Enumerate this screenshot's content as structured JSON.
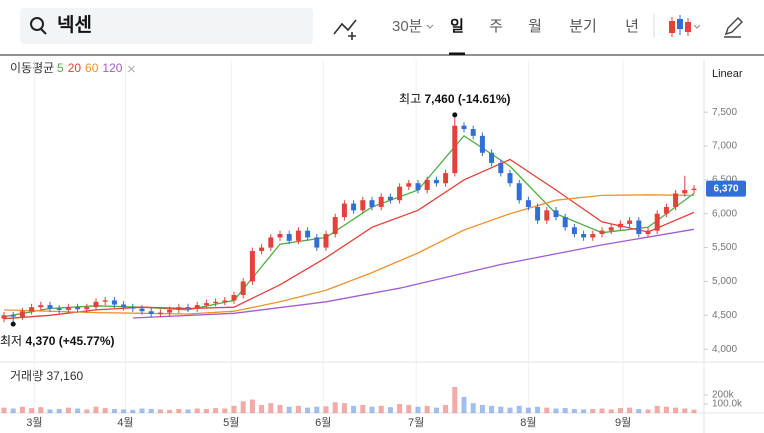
{
  "search": {
    "query": "넥센"
  },
  "toolbar": {
    "interval": "30분",
    "periods": [
      "일",
      "주",
      "월",
      "분기",
      "년"
    ],
    "selected": "일"
  },
  "chart_data": {
    "type": "candlestick",
    "scale_label": "Linear",
    "ma_title": "이동평균",
    "open": [
      4450,
      4500,
      4480,
      4560,
      4620,
      4650,
      4600,
      4580,
      4620,
      4590,
      4620,
      4700,
      4720,
      4660,
      4620,
      4600,
      4560,
      4520,
      4540,
      4580,
      4620,
      4600,
      4650,
      4680,
      4700,
      4720,
      4800,
      5000,
      5450,
      5500,
      5650,
      5700,
      5600,
      5750,
      5650,
      5500,
      5700,
      5950,
      6150,
      6050,
      6200,
      6100,
      6250,
      6200,
      6400,
      6450,
      6350,
      6500,
      6450,
      6600,
      7300,
      7250,
      7150,
      6900,
      6750,
      6600,
      6450,
      6200,
      6100,
      5900,
      6050,
      5950,
      5800,
      5700,
      5650,
      5700,
      5750,
      5800,
      5850,
      5900,
      5700,
      5750,
      6000,
      6100,
      6300,
      6350
    ],
    "high": [
      4550,
      4550,
      4610,
      4670,
      4700,
      4700,
      4650,
      4670,
      4670,
      4670,
      4750,
      4770,
      4770,
      4710,
      4670,
      4650,
      4610,
      4590,
      4630,
      4670,
      4670,
      4700,
      4730,
      4750,
      4770,
      4850,
      5050,
      5500,
      5550,
      5700,
      5750,
      5750,
      5800,
      5800,
      5700,
      5750,
      6000,
      6200,
      6200,
      6250,
      6250,
      6300,
      6300,
      6450,
      6500,
      6500,
      6550,
      6550,
      6650,
      7460,
      7350,
      7300,
      7200,
      6950,
      6800,
      6650,
      6500,
      6250,
      6150,
      6100,
      6100,
      6000,
      5850,
      5750,
      5750,
      5800,
      5850,
      5900,
      5950,
      5950,
      5800,
      6050,
      6150,
      6350,
      6560,
      6420
    ],
    "low": [
      4400,
      4370,
      4430,
      4510,
      4570,
      4550,
      4530,
      4530,
      4540,
      4540,
      4570,
      4650,
      4610,
      4570,
      4550,
      4510,
      4470,
      4470,
      4490,
      4530,
      4550,
      4550,
      4600,
      4630,
      4650,
      4670,
      4750,
      4950,
      5400,
      5450,
      5600,
      5550,
      5550,
      5600,
      5450,
      5450,
      5650,
      5900,
      6000,
      6000,
      6050,
      6050,
      6150,
      6150,
      6350,
      6300,
      6300,
      6400,
      6400,
      6550,
      7200,
      7100,
      6850,
      6700,
      6550,
      6400,
      6150,
      6050,
      5850,
      5850,
      5900,
      5750,
      5650,
      5600,
      5600,
      5650,
      5700,
      5750,
      5800,
      5650,
      5650,
      5700,
      5950,
      6050,
      6250,
      6300
    ],
    "close": [
      4500,
      4480,
      4560,
      4620,
      4650,
      4600,
      4580,
      4620,
      4590,
      4620,
      4700,
      4720,
      4660,
      4620,
      4600,
      4560,
      4520,
      4540,
      4580,
      4620,
      4600,
      4650,
      4680,
      4700,
      4720,
      4800,
      5000,
      5450,
      5500,
      5650,
      5700,
      5600,
      5750,
      5650,
      5500,
      5700,
      5950,
      6150,
      6050,
      6200,
      6100,
      6250,
      6200,
      6400,
      6450,
      6350,
      6500,
      6450,
      6600,
      7300,
      7250,
      7150,
      6900,
      6750,
      6600,
      6450,
      6200,
      6100,
      5900,
      6050,
      5950,
      5800,
      5700,
      5650,
      5700,
      5750,
      5800,
      5850,
      5900,
      5700,
      5750,
      6000,
      6100,
      6300,
      6350,
      6370
    ],
    "up_color": "#e5403a",
    "down_color": "#2f6fd6",
    "ma": [
      {
        "name": "5",
        "color": "#4caf3f",
        "x": [
          0,
          5,
          10,
          15,
          20,
          25,
          30,
          35,
          40,
          45,
          50,
          55,
          60,
          65,
          70,
          75
        ],
        "values": [
          4480,
          4600,
          4640,
          4620,
          4580,
          4720,
          5550,
          5650,
          6100,
          6350,
          7150,
          6700,
          6000,
          5720,
          5800,
          6300
        ]
      },
      {
        "name": "20",
        "color": "#e5403a",
        "x": [
          0,
          5,
          10,
          15,
          20,
          25,
          30,
          35,
          40,
          45,
          50,
          55,
          60,
          65,
          70,
          75
        ],
        "values": [
          4450,
          4500,
          4580,
          4620,
          4600,
          4620,
          4950,
          5350,
          5800,
          6050,
          6500,
          6800,
          6350,
          5880,
          5730,
          6020
        ]
      },
      {
        "name": "60",
        "color": "#f0922e",
        "x": [
          0,
          10,
          20,
          25,
          30,
          35,
          40,
          45,
          50,
          55,
          60,
          65,
          70,
          75
        ],
        "values": [
          4580,
          4540,
          4520,
          4560,
          4700,
          4870,
          5130,
          5420,
          5760,
          6000,
          6200,
          6270,
          6280,
          6270
        ]
      },
      {
        "name": "120",
        "color": "#a35bd0",
        "x": [
          14,
          25,
          35,
          43,
          54,
          65,
          75
        ],
        "values": [
          4460,
          4530,
          4700,
          4900,
          5250,
          5540,
          5770
        ]
      }
    ],
    "ylim": [
      3840,
      8270
    ],
    "yticks": [
      {
        "value": 4000,
        "label": "4,000"
      },
      {
        "value": 4500,
        "label": "4,500"
      },
      {
        "value": 5000,
        "label": "5,000"
      },
      {
        "value": 5500,
        "label": "5,500"
      },
      {
        "value": 6000,
        "label": "6,000"
      },
      {
        "value": 6500,
        "label": "6,500"
      },
      {
        "value": 7000,
        "label": "7,000"
      },
      {
        "value": 7500,
        "label": "7,500"
      }
    ],
    "xticks": [
      {
        "value": 3.3,
        "label": "3월"
      },
      {
        "value": 13.2,
        "label": "4월"
      },
      {
        "value": 24.7,
        "label": "5월"
      },
      {
        "value": 34.7,
        "label": "6월"
      },
      {
        "value": 44.8,
        "label": "7월"
      },
      {
        "value": 57,
        "label": "8월"
      },
      {
        "value": 67.3,
        "label": "9월"
      }
    ],
    "xgrid": true,
    "current": {
      "value": 6370,
      "label": "6,370"
    },
    "annotations": [
      {
        "label": "최고",
        "text": "7,460 (-14.61%)",
        "x": 49,
        "value": 7460,
        "series": "high"
      },
      {
        "label": "최저",
        "text": "4,370 (+45.77%)",
        "x": 1,
        "value": 4370,
        "series": "low"
      }
    ],
    "volume": {
      "title": "거래량",
      "last_label": "37,160",
      "ylim": [
        0,
        480000
      ],
      "yticks": [
        {
          "value": 100000,
          "label": "100.0k"
        },
        {
          "value": 200000,
          "label": "200k"
        }
      ],
      "values": [
        60000,
        50000,
        70000,
        55000,
        65000,
        40000,
        45000,
        60000,
        50000,
        40000,
        70000,
        55000,
        45000,
        40000,
        35000,
        50000,
        45000,
        40000,
        35000,
        45000,
        40000,
        50000,
        45000,
        55000,
        50000,
        80000,
        130000,
        150000,
        90000,
        110000,
        90000,
        70000,
        80000,
        60000,
        70000,
        75000,
        120000,
        110000,
        80000,
        90000,
        70000,
        80000,
        65000,
        100000,
        90000,
        70000,
        80000,
        60000,
        90000,
        290000,
        180000,
        110000,
        90000,
        80000,
        70000,
        60000,
        80000,
        60000,
        70000,
        60000,
        50000,
        55000,
        45000,
        40000,
        45000,
        50000,
        40000,
        55000,
        60000,
        45000,
        40000,
        80000,
        70000,
        60000,
        50000,
        37160
      ]
    }
  }
}
